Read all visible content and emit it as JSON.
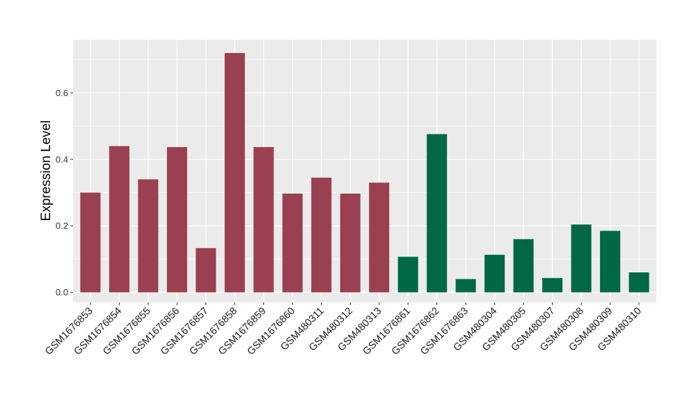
{
  "chart_data": {
    "type": "bar",
    "ylabel": "Expression Level",
    "xlabel": "",
    "ylim": [
      -0.03,
      0.76
    ],
    "yticks": [
      0.0,
      0.2,
      0.4,
      0.6
    ],
    "ytick_labels": [
      "0.0",
      "0.2",
      "0.4",
      "0.6"
    ],
    "grid": true,
    "categories": [
      "GSM1676853",
      "GSM1676854",
      "GSM1676855",
      "GSM1676856",
      "GSM1676857",
      "GSM1676858",
      "GSM1676859",
      "GSM1676860",
      "GSM480311",
      "GSM480312",
      "GSM480313",
      "GSM1676861",
      "GSM1676862",
      "GSM1676863",
      "GSM480304",
      "GSM480305",
      "GSM480307",
      "GSM480308",
      "GSM480309",
      "GSM480310"
    ],
    "values": [
      0.3,
      0.44,
      0.34,
      0.437,
      0.133,
      0.72,
      0.437,
      0.297,
      0.345,
      0.297,
      0.33,
      0.107,
      0.476,
      0.04,
      0.113,
      0.16,
      0.043,
      0.204,
      0.185,
      0.06
    ],
    "groups": [
      0,
      0,
      0,
      0,
      0,
      0,
      0,
      0,
      0,
      0,
      0,
      1,
      1,
      1,
      1,
      1,
      1,
      1,
      1,
      1
    ],
    "colors": [
      "#9a4050",
      "#006845"
    ],
    "panel_color": "#ebebeb",
    "grid_color": "#ffffff"
  }
}
